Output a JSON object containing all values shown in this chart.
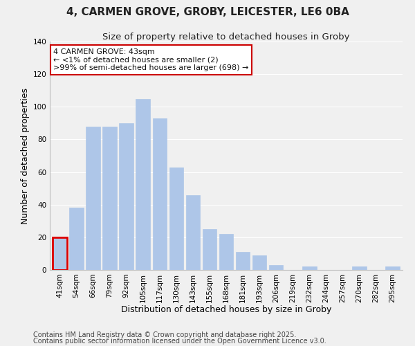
{
  "title": "4, CARMEN GROVE, GROBY, LEICESTER, LE6 0BA",
  "subtitle": "Size of property relative to detached houses in Groby",
  "xlabel": "Distribution of detached houses by size in Groby",
  "ylabel": "Number of detached properties",
  "categories": [
    "41sqm",
    "54sqm",
    "66sqm",
    "79sqm",
    "92sqm",
    "105sqm",
    "117sqm",
    "130sqm",
    "143sqm",
    "155sqm",
    "168sqm",
    "181sqm",
    "193sqm",
    "206sqm",
    "219sqm",
    "232sqm",
    "244sqm",
    "257sqm",
    "270sqm",
    "282sqm",
    "295sqm"
  ],
  "values": [
    20,
    38,
    88,
    88,
    90,
    105,
    93,
    63,
    46,
    25,
    22,
    11,
    9,
    3,
    0,
    2,
    0,
    0,
    2,
    0,
    2
  ],
  "bar_color": "#aec6e8",
  "bar_edge_color": "#aec6e8",
  "highlight_bar_index": 0,
  "highlight_bar_edge_color": "#dd0000",
  "ylim": [
    0,
    140
  ],
  "yticks": [
    0,
    20,
    40,
    60,
    80,
    100,
    120,
    140
  ],
  "annotation_title": "4 CARMEN GROVE: 43sqm",
  "annotation_line1": "← <1% of detached houses are smaller (2)",
  "annotation_line2": ">99% of semi-detached houses are larger (698) →",
  "annotation_box_color": "#ffffff",
  "annotation_box_edge_color": "#cc0000",
  "footer_line1": "Contains HM Land Registry data © Crown copyright and database right 2025.",
  "footer_line2": "Contains public sector information licensed under the Open Government Licence v3.0.",
  "background_color": "#f0f0f0",
  "grid_color": "#ffffff",
  "title_fontsize": 11,
  "subtitle_fontsize": 9.5,
  "axis_label_fontsize": 9,
  "tick_fontsize": 7.5,
  "annotation_fontsize": 8,
  "footer_fontsize": 7
}
